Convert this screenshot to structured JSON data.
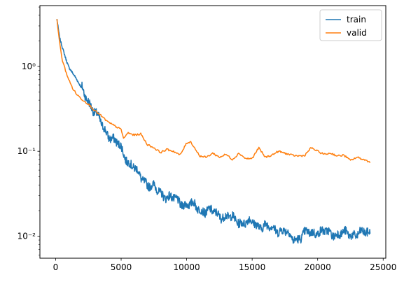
{
  "chart_data": {
    "type": "line",
    "title": "",
    "xlabel": "",
    "ylabel": "",
    "xlim": [
      -1200,
      25200
    ],
    "ylim": [
      0.0055,
      5.2
    ],
    "yscale": "log",
    "grid": false,
    "legend": {
      "position": "top-right",
      "entries": [
        "train",
        "valid"
      ]
    },
    "xticks": [
      0,
      5000,
      10000,
      15000,
      20000,
      25000
    ],
    "xtick_labels": [
      "0",
      "5000",
      "10000",
      "15000",
      "20000",
      "25000"
    ],
    "yticks": [
      0.01,
      0.1,
      1
    ],
    "ytick_labels": [
      "10⁻²",
      "10⁻¹",
      "10⁰"
    ],
    "series": [
      {
        "name": "train",
        "color": "#1f77b4",
        "x": [
          100,
          300,
          500,
          800,
          1000,
          1500,
          2000,
          2500,
          3000,
          3500,
          4000,
          4500,
          5000,
          5500,
          6000,
          6500,
          7000,
          7500,
          8000,
          8500,
          9000,
          9500,
          10000,
          10500,
          11000,
          11500,
          12000,
          12500,
          13000,
          13500,
          14000,
          14500,
          15000,
          15500,
          16000,
          16500,
          17000,
          17500,
          18000,
          18500,
          19000,
          19500,
          20000,
          20500,
          21000,
          21500,
          22000,
          22500,
          23000,
          23500,
          24000
        ],
        "values": [
          3.6,
          2.2,
          1.7,
          1.2,
          0.98,
          0.75,
          0.55,
          0.4,
          0.28,
          0.21,
          0.16,
          0.13,
          0.11,
          0.078,
          0.062,
          0.05,
          0.042,
          0.037,
          0.032,
          0.03,
          0.027,
          0.025,
          0.024,
          0.023,
          0.021,
          0.02,
          0.019,
          0.018,
          0.017,
          0.016,
          0.015,
          0.0145,
          0.0145,
          0.0135,
          0.013,
          0.0125,
          0.012,
          0.0115,
          0.0095,
          0.0095,
          0.0105,
          0.011,
          0.0115,
          0.011,
          0.0108,
          0.0108,
          0.0106,
          0.0105,
          0.0108,
          0.0107,
          0.011
        ]
      },
      {
        "name": "valid",
        "color": "#ff7f0e",
        "x": [
          100,
          300,
          500,
          800,
          1000,
          1300,
          1600,
          2000,
          2500,
          3000,
          3500,
          4000,
          4500,
          5000,
          5200,
          5500,
          6000,
          6500,
          7000,
          7500,
          8000,
          8500,
          9000,
          9500,
          10000,
          10300,
          10600,
          11000,
          11500,
          12000,
          12500,
          13000,
          13500,
          14000,
          14500,
          15000,
          15500,
          16000,
          16500,
          17000,
          17500,
          18000,
          18500,
          19000,
          19500,
          20000,
          20500,
          21000,
          21500,
          22000,
          22500,
          23000,
          23500,
          24000
        ],
        "values": [
          3.6,
          1.9,
          1.2,
          0.85,
          0.7,
          0.55,
          0.47,
          0.41,
          0.36,
          0.3,
          0.26,
          0.22,
          0.2,
          0.18,
          0.14,
          0.165,
          0.155,
          0.16,
          0.12,
          0.11,
          0.097,
          0.105,
          0.1,
          0.09,
          0.125,
          0.13,
          0.11,
          0.088,
          0.085,
          0.095,
          0.085,
          0.092,
          0.08,
          0.095,
          0.082,
          0.082,
          0.11,
          0.085,
          0.09,
          0.1,
          0.095,
          0.09,
          0.088,
          0.089,
          0.11,
          0.1,
          0.092,
          0.095,
          0.088,
          0.09,
          0.078,
          0.085,
          0.08,
          0.075
        ]
      }
    ]
  }
}
